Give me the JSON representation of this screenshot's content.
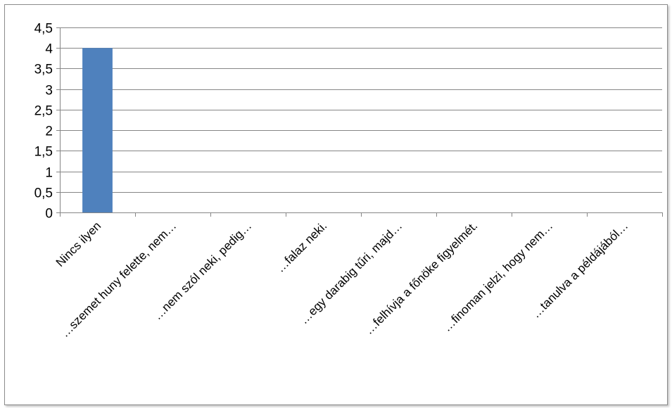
{
  "chart_data": {
    "type": "bar",
    "categories": [
      "Nincs ilyen",
      "…szemet huny felette, nem…",
      "…nem szól neki, pedig…",
      "…falaz neki.",
      "…egy darabig tűri, majd…",
      "…felhívja a főnöke figyelmét.",
      "…finoman jelzi, hogy nem…",
      "…tanulva a példájából…"
    ],
    "values": [
      4,
      0,
      0,
      0,
      0,
      0,
      0,
      0
    ],
    "ylim": [
      0,
      4.5
    ],
    "yticks": [
      "0",
      "0,5",
      "1",
      "1,5",
      "2",
      "2,5",
      "3",
      "3,5",
      "4",
      "4,5"
    ],
    "ytick_values": [
      0,
      0.5,
      1,
      1.5,
      2,
      2.5,
      3,
      3.5,
      4,
      4.5
    ],
    "grid": true,
    "legend": "none",
    "bar_color": "#4f81bd",
    "grid_color": "#868686"
  }
}
